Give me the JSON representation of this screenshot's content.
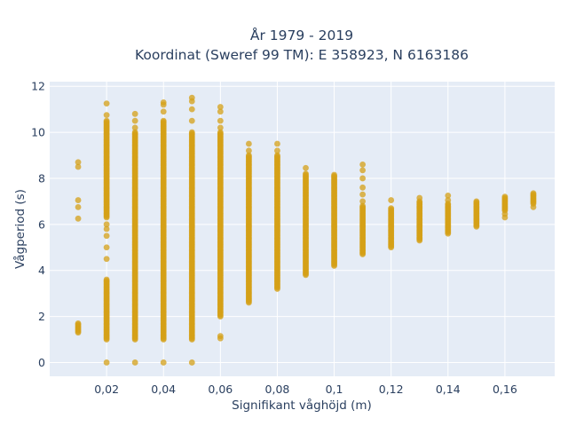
{
  "chart_data": {
    "type": "scatter",
    "title": "År 1979 - 2019",
    "subtitle": "Koordinat (Sweref 99 TM): E 358923, N 6163186",
    "xlabel": "Signifikant våghöjd (m)",
    "ylabel": "Vågperiod (s)",
    "xlim": [
      0.0,
      0.1775
    ],
    "ylim": [
      -0.6,
      12.2
    ],
    "x_ticks": [
      0.02,
      0.04,
      0.06,
      0.08,
      0.1,
      0.12,
      0.14,
      0.16
    ],
    "x_tick_labels": [
      "0,02",
      "0,04",
      "0,06",
      "0,08",
      "0,1",
      "0,12",
      "0,14",
      "0,16"
    ],
    "y_ticks": [
      0,
      2,
      4,
      6,
      8,
      10,
      12
    ],
    "y_tick_labels": [
      "0",
      "2",
      "4",
      "6",
      "8",
      "10",
      "12"
    ],
    "grid": true,
    "background": "#e5ecf6",
    "marker_color": "#d4a017",
    "series": [
      {
        "columns": [
          {
            "x": 0.01,
            "y_ranges": [
              [
                1.3,
                1.7
              ]
            ],
            "points": [
              6.25,
              6.75,
              7.05,
              8.5,
              8.7
            ]
          },
          {
            "x": 0.02,
            "y_ranges": [
              [
                1.0,
                3.6
              ],
              [
                6.3,
                10.5
              ]
            ],
            "points": [
              0.0,
              4.5,
              5.0,
              5.5,
              5.8,
              6.0,
              10.75,
              11.25
            ]
          },
          {
            "x": 0.03,
            "y_ranges": [
              [
                1.0,
                10.0
              ]
            ],
            "points": [
              0.0,
              10.2,
              10.5,
              10.8
            ]
          },
          {
            "x": 0.04,
            "y_ranges": [
              [
                1.0,
                10.5
              ]
            ],
            "points": [
              0.0,
              10.9,
              11.2,
              11.3
            ]
          },
          {
            "x": 0.05,
            "y_ranges": [
              [
                1.0,
                10.0
              ]
            ],
            "points": [
              0.0,
              10.5,
              11.0,
              11.35,
              11.5
            ]
          },
          {
            "x": 0.06,
            "y_ranges": [
              [
                2.0,
                10.0
              ]
            ],
            "points": [
              1.05,
              1.15,
              10.2,
              10.5,
              10.9,
              11.1
            ]
          },
          {
            "x": 0.07,
            "y_ranges": [
              [
                2.6,
                9.0
              ]
            ],
            "points": [
              9.2,
              9.5
            ]
          },
          {
            "x": 0.08,
            "y_ranges": [
              [
                3.2,
                9.0
              ]
            ],
            "points": [
              9.2,
              9.5
            ]
          },
          {
            "x": 0.09,
            "y_ranges": [
              [
                3.8,
                8.2
              ]
            ],
            "points": [
              8.45
            ]
          },
          {
            "x": 0.1,
            "y_ranges": [
              [
                4.2,
                8.15
              ]
            ],
            "points": []
          },
          {
            "x": 0.11,
            "y_ranges": [
              [
                4.7,
                6.8
              ]
            ],
            "points": [
              7.0,
              7.3,
              7.6,
              8.0,
              8.35,
              8.6
            ]
          },
          {
            "x": 0.12,
            "y_ranges": [
              [
                5.0,
                6.7
              ]
            ],
            "points": [
              7.05
            ]
          },
          {
            "x": 0.13,
            "y_ranges": [
              [
                5.3,
                7.0
              ]
            ],
            "points": [
              7.15
            ]
          },
          {
            "x": 0.14,
            "y_ranges": [
              [
                5.6,
                6.9
              ]
            ],
            "points": [
              7.05,
              7.25
            ]
          },
          {
            "x": 0.15,
            "y_ranges": [
              [
                5.9,
                7.0
              ]
            ],
            "points": []
          },
          {
            "x": 0.16,
            "y_ranges": [
              [
                6.6,
                7.2
              ]
            ],
            "points": [
              6.3,
              6.45
            ]
          },
          {
            "x": 0.17,
            "y_ranges": [
              [
                6.9,
                7.35
              ]
            ],
            "points": [
              6.75
            ]
          }
        ]
      }
    ]
  }
}
